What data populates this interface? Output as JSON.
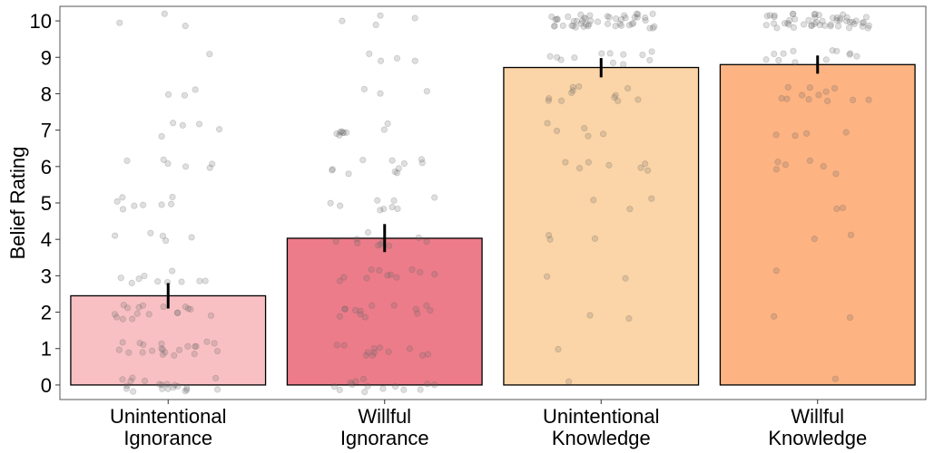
{
  "chart_data": {
    "type": "bar",
    "ylabel": "Belief Rating",
    "xlabel": "",
    "ylim": [
      -0.4,
      10.4
    ],
    "yticks": [
      0,
      1,
      2,
      3,
      4,
      5,
      6,
      7,
      8,
      9,
      10
    ],
    "grid": false,
    "legend": "none",
    "categories": [
      [
        "Unintentional",
        "Ignorance"
      ],
      [
        "Willful",
        "Ignorance"
      ],
      [
        "Unintentional",
        "Knowledge"
      ],
      [
        "Willful",
        "Knowledge"
      ]
    ],
    "values": [
      2.45,
      4.03,
      8.72,
      8.8
    ],
    "error_bars": [
      [
        2.1,
        2.8
      ],
      [
        3.65,
        4.42
      ],
      [
        8.45,
        8.98
      ],
      [
        8.55,
        9.05
      ]
    ],
    "colors": [
      "#f9c0c3",
      "#ec7c89",
      "#fbd5a7",
      "#fdb382"
    ],
    "points": [
      [
        0,
        0,
        0,
        0,
        0,
        0,
        0,
        0,
        0,
        0,
        0,
        0,
        0,
        0,
        0,
        0,
        0,
        0,
        0,
        0,
        1,
        1,
        1,
        1,
        1,
        1,
        1,
        1,
        1,
        1,
        1,
        1,
        1,
        1,
        1,
        1,
        1,
        1,
        1,
        1,
        1,
        2,
        2,
        2,
        2,
        2,
        2,
        2,
        2,
        2,
        2,
        2,
        2,
        2,
        2,
        2,
        2,
        2,
        3,
        3,
        3,
        3,
        3,
        3,
        3,
        3,
        3,
        3,
        4,
        4,
        4,
        4,
        4,
        5,
        5,
        5,
        5,
        5,
        5,
        5,
        5,
        6,
        6,
        6,
        6,
        6,
        6,
        7,
        7,
        7,
        7,
        7,
        8,
        8,
        8,
        9,
        10,
        10,
        10
      ],
      [
        0,
        0,
        0,
        0,
        0,
        0,
        0,
        0,
        0,
        0,
        0,
        0,
        0,
        0,
        1,
        1,
        1,
        1,
        1,
        1,
        1,
        1,
        1,
        1,
        1,
        1,
        2,
        2,
        2,
        2,
        2,
        2,
        2,
        2,
        2,
        2,
        2,
        2,
        2,
        3,
        3,
        3,
        3,
        3,
        3,
        3,
        3,
        3,
        3,
        3,
        4,
        4,
        4,
        4,
        4,
        4,
        4,
        4,
        4,
        4,
        5,
        5,
        5,
        5,
        5,
        5,
        5,
        5,
        5,
        6,
        6,
        6,
        6,
        6,
        6,
        6,
        6,
        6,
        6,
        6,
        7,
        7,
        7,
        7,
        7,
        7,
        7,
        7,
        7,
        8,
        8,
        8,
        9,
        9,
        9,
        9,
        10,
        10,
        10,
        10
      ],
      [
        0,
        1,
        2,
        2,
        3,
        3,
        4,
        4,
        4,
        5,
        5,
        5,
        6,
        6,
        6,
        6,
        6,
        6,
        6,
        7,
        7,
        7,
        7,
        7,
        8,
        8,
        8,
        8,
        8,
        8,
        8,
        8,
        8,
        8,
        8,
        8,
        9,
        9,
        9,
        9,
        9,
        9,
        9,
        9,
        9,
        9,
        9,
        9,
        10,
        10,
        10,
        10,
        10,
        10,
        10,
        10,
        10,
        10,
        10,
        10,
        10,
        10,
        10,
        10,
        10,
        10,
        10,
        10,
        10,
        10,
        10,
        10,
        10,
        10,
        10,
        10,
        10,
        10,
        10,
        10,
        10,
        10,
        10,
        10,
        10,
        10,
        10,
        10,
        10,
        10,
        10,
        10,
        10,
        10,
        10,
        10
      ],
      [
        0,
        2,
        2,
        3,
        4,
        4,
        5,
        5,
        6,
        6,
        6,
        6,
        6,
        6,
        7,
        7,
        7,
        7,
        8,
        8,
        8,
        8,
        8,
        8,
        8,
        8,
        8,
        8,
        8,
        8,
        9,
        9,
        9,
        9,
        9,
        9,
        9,
        9,
        9,
        9,
        9,
        9,
        10,
        10,
        10,
        10,
        10,
        10,
        10,
        10,
        10,
        10,
        10,
        10,
        10,
        10,
        10,
        10,
        10,
        10,
        10,
        10,
        10,
        10,
        10,
        10,
        10,
        10,
        10,
        10,
        10,
        10,
        10,
        10,
        10,
        10,
        10,
        10,
        10,
        10,
        10,
        10,
        10,
        10,
        10,
        10,
        10,
        10,
        10,
        10,
        10,
        10
      ]
    ]
  }
}
